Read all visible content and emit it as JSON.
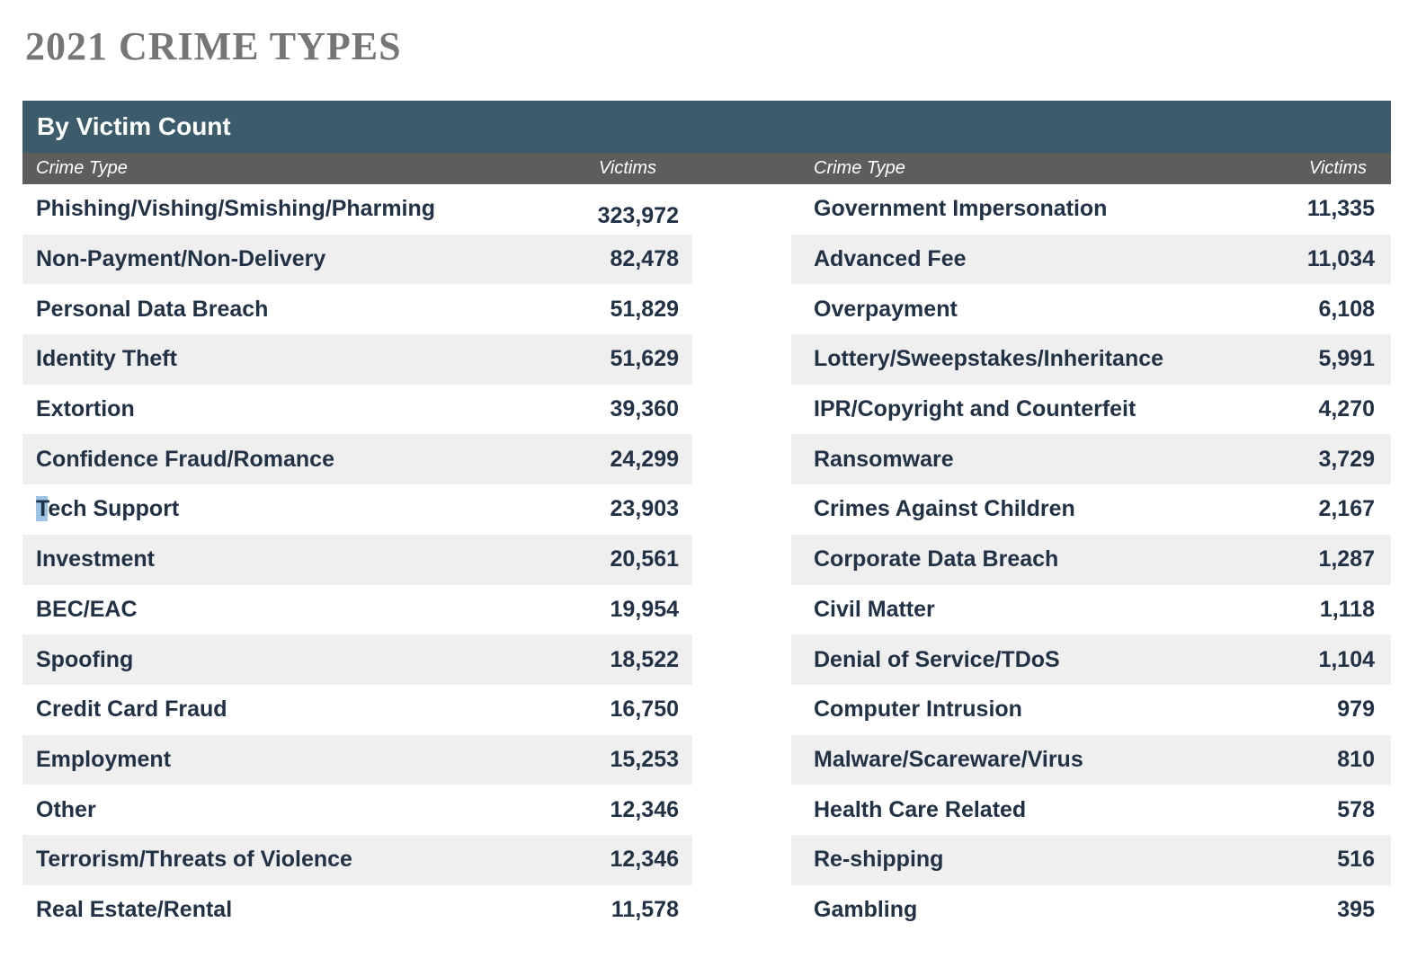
{
  "page_title": "2021 CRIME TYPES",
  "chart_data": {
    "type": "table",
    "title": "By Victim Count",
    "columns": [
      "Crime Type",
      "Victims",
      "Crime Type",
      "Victims"
    ],
    "left_rows": [
      {
        "crime_type": "Phishing/Vishing/Smishing/Pharming",
        "victims": "323,972"
      },
      {
        "crime_type": "Non-Payment/Non-Delivery",
        "victims": "82,478"
      },
      {
        "crime_type": "Personal Data Breach",
        "victims": "51,829"
      },
      {
        "crime_type": "Identity Theft",
        "victims": "51,629"
      },
      {
        "crime_type": "Extortion",
        "victims": "39,360"
      },
      {
        "crime_type": "Confidence Fraud/Romance",
        "victims": "24,299"
      },
      {
        "crime_type": "Tech Support",
        "victims": "23,903",
        "selection_highlight_prefix": "T"
      },
      {
        "crime_type": "Investment",
        "victims": "20,561"
      },
      {
        "crime_type": "BEC/EAC",
        "victims": "19,954"
      },
      {
        "crime_type": "Spoofing",
        "victims": "18,522"
      },
      {
        "crime_type": "Credit Card Fraud",
        "victims": "16,750"
      },
      {
        "crime_type": "Employment",
        "victims": "15,253"
      },
      {
        "crime_type": "Other",
        "victims": "12,346"
      },
      {
        "crime_type": "Terrorism/Threats of Violence",
        "victims": "12,346"
      },
      {
        "crime_type": "Real Estate/Rental",
        "victims": "11,578"
      }
    ],
    "right_rows": [
      {
        "crime_type": "Government Impersonation",
        "victims": "11,335"
      },
      {
        "crime_type": "Advanced Fee",
        "victims": "11,034"
      },
      {
        "crime_type": "Overpayment",
        "victims": "6,108"
      },
      {
        "crime_type": "Lottery/Sweepstakes/Inheritance",
        "victims": "5,991"
      },
      {
        "crime_type": "IPR/Copyright and Counterfeit",
        "victims": "4,270"
      },
      {
        "crime_type": "Ransomware",
        "victims": "3,729"
      },
      {
        "crime_type": "Crimes Against Children",
        "victims": "2,167"
      },
      {
        "crime_type": "Corporate Data Breach",
        "victims": "1,287"
      },
      {
        "crime_type": "Civil Matter",
        "victims": "1,118"
      },
      {
        "crime_type": "Denial of Service/TDoS",
        "victims": "1,104"
      },
      {
        "crime_type": "Computer Intrusion",
        "victims": "979"
      },
      {
        "crime_type": "Malware/Scareware/Virus",
        "victims": "810"
      },
      {
        "crime_type": "Health Care Related",
        "victims": "578"
      },
      {
        "crime_type": "Re-shipping",
        "victims": "516"
      },
      {
        "crime_type": "Gambling",
        "victims": "395"
      }
    ]
  },
  "colors": {
    "table_title_bg": "#3c5c6c",
    "column_header_bg": "#5d5d5d",
    "stripe_row_bg": "#efefef",
    "row_text": "#213246",
    "page_title_text": "#767676",
    "selection_highlight": "#9dc3e6"
  }
}
